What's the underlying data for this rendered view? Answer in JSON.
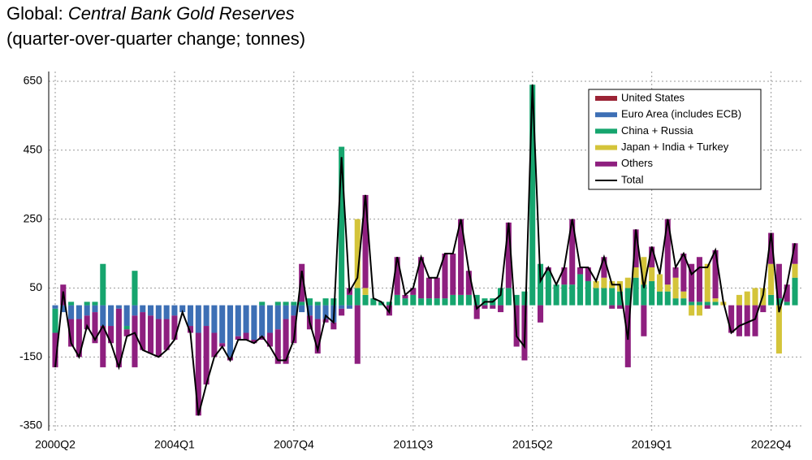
{
  "chart_data": {
    "type": "stacked-bar-line",
    "title": "Global:",
    "title_emphasis": "Central Bank Gold Reserves",
    "subtitle": "(quarter-over-quarter change; tonnes)",
    "categories": [
      "2000Q2",
      null,
      null,
      null,
      null,
      null,
      null,
      null,
      null,
      null,
      null,
      null,
      null,
      null,
      null,
      "2004Q1",
      null,
      null,
      null,
      null,
      null,
      null,
      null,
      null,
      null,
      null,
      null,
      null,
      null,
      null,
      "2007Q4",
      null,
      null,
      null,
      null,
      null,
      null,
      null,
      null,
      null,
      null,
      null,
      null,
      null,
      null,
      "2011Q3",
      null,
      null,
      null,
      null,
      null,
      null,
      null,
      null,
      null,
      null,
      null,
      null,
      null,
      null,
      "2015Q2",
      null,
      null,
      null,
      null,
      null,
      null,
      null,
      null,
      null,
      null,
      null,
      null,
      null,
      null,
      "2019Q1",
      null,
      null,
      null,
      null,
      null,
      null,
      null,
      null,
      null,
      null,
      null,
      null,
      null,
      null,
      "2022Q4",
      null,
      null,
      null
    ],
    "ylim": [
      -350,
      700
    ],
    "yticks": [
      -350,
      -150,
      50,
      250,
      450,
      650
    ],
    "grid": true,
    "legend": "upper right",
    "series": [
      {
        "name": "United States",
        "color": "#9b2335",
        "values": [
          0,
          0,
          0,
          0,
          0,
          0,
          0,
          0,
          0,
          0,
          0,
          0,
          0,
          0,
          0,
          0,
          0,
          0,
          0,
          0,
          0,
          0,
          0,
          0,
          0,
          0,
          0,
          0,
          0,
          0,
          0,
          0,
          0,
          0,
          0,
          0,
          0,
          0,
          0,
          0,
          0,
          0,
          0,
          0,
          0,
          0,
          0,
          0,
          0,
          0,
          0,
          0,
          0,
          0,
          0,
          0,
          0,
          0,
          0,
          0,
          0,
          0,
          0,
          0,
          0,
          0,
          0,
          0,
          0,
          0,
          0,
          0,
          0,
          0,
          0,
          0,
          0,
          0,
          0,
          0,
          0,
          0,
          0,
          0,
          0,
          0,
          0,
          0,
          0,
          0,
          0,
          0,
          0,
          0
        ]
      },
      {
        "name": "Euro Area (includes ECB)",
        "color": "#3d6fb5",
        "values": [
          -10,
          -20,
          -40,
          -40,
          -30,
          -20,
          -60,
          -60,
          -10,
          -60,
          -30,
          -20,
          -30,
          -40,
          -40,
          -30,
          -20,
          -60,
          -80,
          -60,
          -80,
          -110,
          -150,
          -90,
          -80,
          -100,
          -90,
          -80,
          -70,
          -40,
          -30,
          -20,
          -30,
          -40,
          -40,
          -50,
          -10,
          -10,
          0,
          0,
          0,
          0,
          0,
          0,
          0,
          0,
          0,
          0,
          0,
          0,
          0,
          0,
          0,
          0,
          0,
          0,
          0,
          0,
          0,
          0,
          0,
          0,
          0,
          0,
          0,
          0,
          0,
          0,
          0,
          0,
          0,
          0,
          0,
          0,
          0,
          0,
          0,
          0,
          0,
          0,
          0,
          0,
          0,
          0,
          0,
          0,
          0,
          0,
          0,
          0,
          0,
          0,
          0,
          0
        ]
      },
      {
        "name": "China + Russia",
        "color": "#16a56e",
        "values": [
          -70,
          0,
          10,
          0,
          10,
          10,
          120,
          0,
          0,
          -10,
          100,
          0,
          0,
          0,
          0,
          0,
          0,
          0,
          0,
          0,
          0,
          0,
          0,
          0,
          0,
          0,
          10,
          0,
          10,
          10,
          10,
          10,
          20,
          10,
          20,
          20,
          460,
          30,
          50,
          30,
          20,
          10,
          10,
          30,
          20,
          30,
          20,
          20,
          20,
          20,
          30,
          30,
          30,
          30,
          20,
          20,
          50,
          50,
          30,
          40,
          640,
          120,
          100,
          60,
          60,
          60,
          90,
          70,
          50,
          50,
          50,
          40,
          50,
          80,
          60,
          70,
          40,
          40,
          20,
          20,
          10,
          10,
          10,
          10,
          0,
          0,
          0,
          0,
          0,
          0,
          30,
          20,
          10,
          80
        ]
      },
      {
        "name": "Japan + India + Turkey",
        "color": "#d4c43a",
        "values": [
          0,
          0,
          0,
          0,
          0,
          0,
          0,
          0,
          0,
          0,
          0,
          0,
          0,
          0,
          0,
          0,
          0,
          0,
          0,
          0,
          0,
          0,
          0,
          0,
          0,
          0,
          0,
          0,
          0,
          0,
          0,
          0,
          0,
          0,
          0,
          0,
          0,
          0,
          200,
          20,
          0,
          0,
          0,
          0,
          0,
          0,
          0,
          0,
          0,
          0,
          0,
          0,
          0,
          0,
          0,
          0,
          0,
          0,
          0,
          0,
          0,
          0,
          0,
          0,
          0,
          0,
          0,
          0,
          20,
          30,
          20,
          30,
          30,
          30,
          80,
          40,
          50,
          20,
          60,
          20,
          -30,
          -30,
          110,
          10,
          10,
          0,
          30,
          40,
          50,
          50,
          90,
          -140,
          0,
          40
        ]
      },
      {
        "name": "Others",
        "color": "#8e1f7f",
        "values": [
          -100,
          60,
          -80,
          -110,
          -40,
          -90,
          -120,
          -50,
          -170,
          -20,
          -150,
          -110,
          -110,
          -110,
          -90,
          -70,
          0,
          -20,
          -240,
          -170,
          -70,
          -10,
          -10,
          -10,
          -20,
          -10,
          -10,
          -40,
          -100,
          -130,
          -80,
          110,
          -40,
          -100,
          -10,
          -20,
          -20,
          20,
          -170,
          270,
          0,
          0,
          -30,
          110,
          10,
          20,
          120,
          60,
          60,
          130,
          120,
          220,
          70,
          -40,
          -10,
          -10,
          -20,
          190,
          -120,
          -160,
          0,
          -50,
          10,
          0,
          50,
          190,
          20,
          40,
          0,
          60,
          -10,
          -10,
          -180,
          110,
          -90,
          60,
          0,
          190,
          30,
          110,
          110,
          130,
          -10,
          140,
          0,
          -80,
          -90,
          -90,
          -90,
          -20,
          90,
          100,
          50,
          60
        ]
      },
      {
        "name": "Total",
        "color": "#000000",
        "kind": "line",
        "values": [
          -180,
          40,
          -110,
          -150,
          -60,
          -100,
          -60,
          -110,
          -180,
          -90,
          -80,
          -130,
          -140,
          -150,
          -130,
          -100,
          -20,
          -80,
          -320,
          -230,
          -150,
          -120,
          -160,
          -100,
          -100,
          -110,
          -90,
          -120,
          -160,
          -160,
          -100,
          100,
          -50,
          -130,
          -30,
          -50,
          430,
          40,
          80,
          320,
          20,
          10,
          -20,
          140,
          30,
          50,
          140,
          80,
          80,
          150,
          150,
          250,
          100,
          -10,
          10,
          10,
          30,
          240,
          -90,
          -120,
          640,
          70,
          110,
          60,
          110,
          250,
          110,
          110,
          70,
          140,
          60,
          60,
          -100,
          220,
          50,
          170,
          90,
          250,
          110,
          150,
          90,
          110,
          110,
          160,
          10,
          -80,
          -60,
          -50,
          -40,
          30,
          210,
          -20,
          60,
          180
        ]
      }
    ]
  }
}
